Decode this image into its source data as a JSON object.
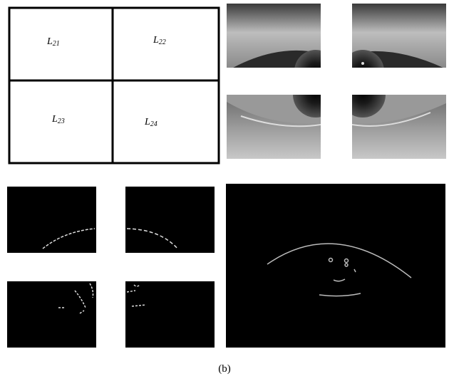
{
  "regions": [
    {
      "base": "L",
      "sub": "21"
    },
    {
      "base": "L",
      "sub": "22"
    },
    {
      "base": "L",
      "sub": "23"
    },
    {
      "base": "L",
      "sub": "24"
    }
  ],
  "caption": "(b)"
}
